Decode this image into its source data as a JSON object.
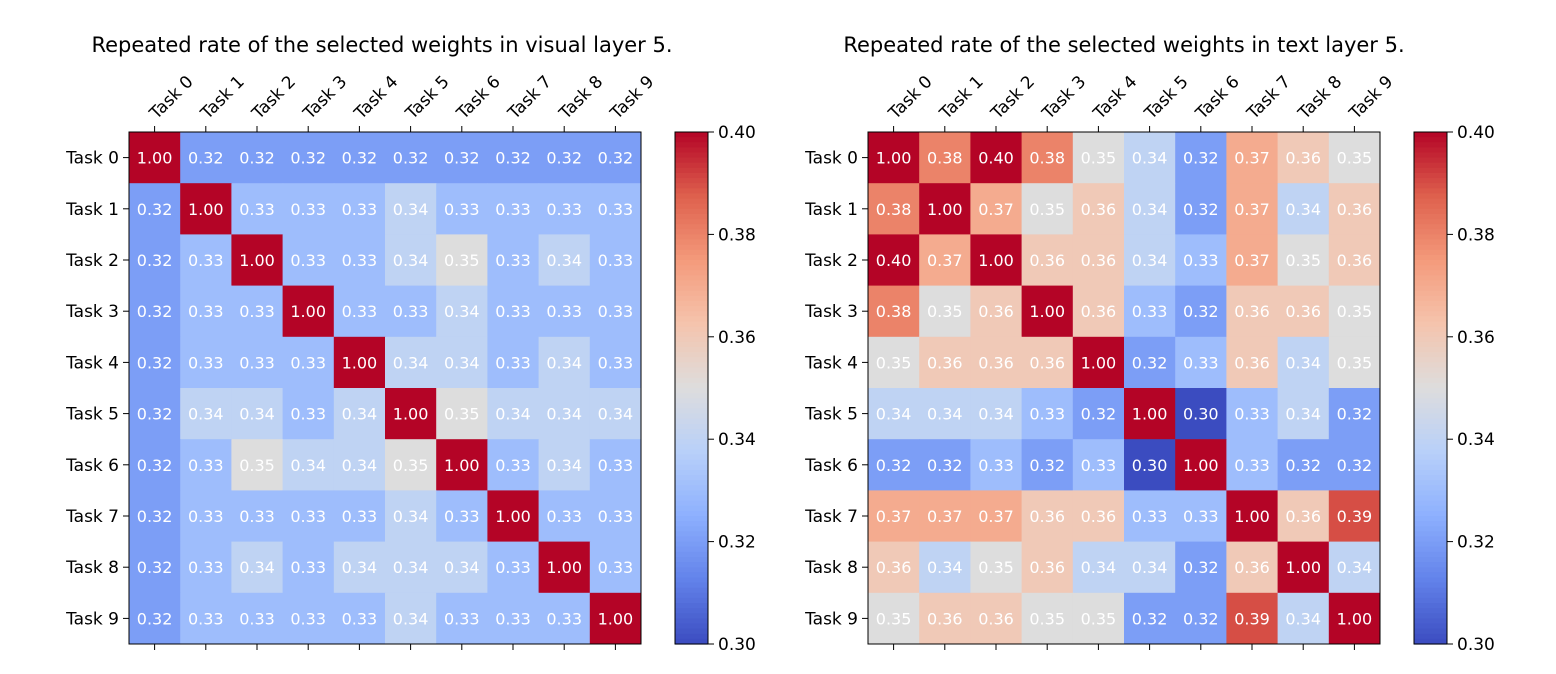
{
  "chart_data": [
    {
      "type": "heatmap",
      "title": "Repeated rate of the selected weights in visual layer 5.",
      "x_labels": [
        "Task 0",
        "Task 1",
        "Task 2",
        "Task 3",
        "Task 4",
        "Task 5",
        "Task 6",
        "Task 7",
        "Task 8",
        "Task 9"
      ],
      "y_labels": [
        "Task 0",
        "Task 1",
        "Task 2",
        "Task 3",
        "Task 4",
        "Task 5",
        "Task 6",
        "Task 7",
        "Task 8",
        "Task 9"
      ],
      "values": [
        [
          1.0,
          0.32,
          0.32,
          0.32,
          0.32,
          0.32,
          0.32,
          0.32,
          0.32,
          0.32
        ],
        [
          0.32,
          1.0,
          0.33,
          0.33,
          0.33,
          0.34,
          0.33,
          0.33,
          0.33,
          0.33
        ],
        [
          0.32,
          0.33,
          1.0,
          0.33,
          0.33,
          0.34,
          0.35,
          0.33,
          0.34,
          0.33
        ],
        [
          0.32,
          0.33,
          0.33,
          1.0,
          0.33,
          0.33,
          0.34,
          0.33,
          0.33,
          0.33
        ],
        [
          0.32,
          0.33,
          0.33,
          0.33,
          1.0,
          0.34,
          0.34,
          0.33,
          0.34,
          0.33
        ],
        [
          0.32,
          0.34,
          0.34,
          0.33,
          0.34,
          1.0,
          0.35,
          0.34,
          0.34,
          0.34
        ],
        [
          0.32,
          0.33,
          0.35,
          0.34,
          0.34,
          0.35,
          1.0,
          0.33,
          0.34,
          0.33
        ],
        [
          0.32,
          0.33,
          0.33,
          0.33,
          0.33,
          0.34,
          0.33,
          1.0,
          0.33,
          0.33
        ],
        [
          0.32,
          0.33,
          0.34,
          0.33,
          0.34,
          0.34,
          0.34,
          0.33,
          1.0,
          0.33
        ],
        [
          0.32,
          0.33,
          0.33,
          0.33,
          0.33,
          0.34,
          0.33,
          0.33,
          0.33,
          1.0
        ]
      ],
      "colormap": "coolwarm",
      "vmin": 0.3,
      "vmax": 0.4,
      "colorbar_ticks": [
        "0.30",
        "0.32",
        "0.34",
        "0.36",
        "0.38",
        "0.40"
      ],
      "x_tick_position": "top",
      "grid": false
    },
    {
      "type": "heatmap",
      "title": "Repeated rate of the selected weights in text layer 5.",
      "x_labels": [
        "Task 0",
        "Task 1",
        "Task 2",
        "Task 3",
        "Task 4",
        "Task 5",
        "Task 6",
        "Task 7",
        "Task 8",
        "Task 9"
      ],
      "y_labels": [
        "Task 0",
        "Task 1",
        "Task 2",
        "Task 3",
        "Task 4",
        "Task 5",
        "Task 6",
        "Task 7",
        "Task 8",
        "Task 9"
      ],
      "values": [
        [
          1.0,
          0.38,
          0.4,
          0.38,
          0.35,
          0.34,
          0.32,
          0.37,
          0.36,
          0.35
        ],
        [
          0.38,
          1.0,
          0.37,
          0.35,
          0.36,
          0.34,
          0.32,
          0.37,
          0.34,
          0.36
        ],
        [
          0.4,
          0.37,
          1.0,
          0.36,
          0.36,
          0.34,
          0.33,
          0.37,
          0.35,
          0.36
        ],
        [
          0.38,
          0.35,
          0.36,
          1.0,
          0.36,
          0.33,
          0.32,
          0.36,
          0.36,
          0.35
        ],
        [
          0.35,
          0.36,
          0.36,
          0.36,
          1.0,
          0.32,
          0.33,
          0.36,
          0.34,
          0.35
        ],
        [
          0.34,
          0.34,
          0.34,
          0.33,
          0.32,
          1.0,
          0.3,
          0.33,
          0.34,
          0.32
        ],
        [
          0.32,
          0.32,
          0.33,
          0.32,
          0.33,
          0.3,
          1.0,
          0.33,
          0.32,
          0.32
        ],
        [
          0.37,
          0.37,
          0.37,
          0.36,
          0.36,
          0.33,
          0.33,
          1.0,
          0.36,
          0.39
        ],
        [
          0.36,
          0.34,
          0.35,
          0.36,
          0.34,
          0.34,
          0.32,
          0.36,
          1.0,
          0.34
        ],
        [
          0.35,
          0.36,
          0.36,
          0.35,
          0.35,
          0.32,
          0.32,
          0.39,
          0.34,
          1.0
        ]
      ],
      "colormap": "coolwarm",
      "vmin": 0.3,
      "vmax": 0.4,
      "colorbar_ticks": [
        "0.30",
        "0.32",
        "0.34",
        "0.36",
        "0.38",
        "0.40"
      ],
      "x_tick_position": "top",
      "grid": false
    }
  ]
}
